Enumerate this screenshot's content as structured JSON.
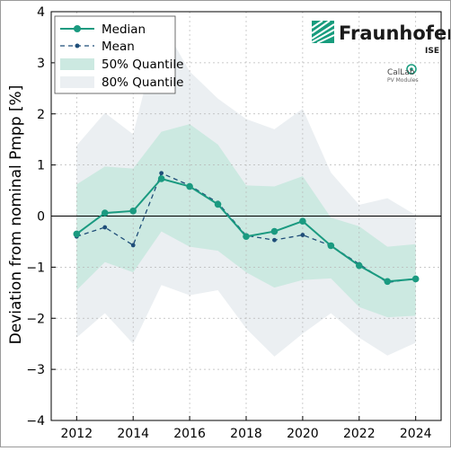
{
  "chart_data": {
    "type": "line",
    "ylabel": "Deviation from nominal Pmpp [%]",
    "xlabel": "",
    "xlim": [
      2011.1,
      2024.9
    ],
    "ylim": [
      -4,
      4
    ],
    "xticks": [
      2012,
      2014,
      2016,
      2018,
      2020,
      2022,
      2024
    ],
    "yticks": [
      -4,
      -3,
      -2,
      -1,
      0,
      1,
      2,
      3,
      4
    ],
    "grid": true,
    "zero_line": true,
    "legend_position": "top-left",
    "series": [
      {
        "name": "Median",
        "style": "solid line with markers",
        "color": "#1a9a80",
        "x": [
          2012,
          2013,
          2014,
          2015,
          2016,
          2017,
          2018,
          2019,
          2020,
          2021,
          2022,
          2023,
          2024
        ],
        "y": [
          -0.35,
          0.06,
          0.1,
          0.73,
          0.58,
          0.23,
          -0.4,
          -0.3,
          -0.1,
          -0.58,
          -0.97,
          -1.28,
          -1.23
        ]
      },
      {
        "name": "Mean",
        "style": "dashed line with markers",
        "color": "#1f4e79",
        "x": [
          2012,
          2013,
          2014,
          2015,
          2016,
          2017,
          2018,
          2019,
          2020,
          2021,
          2022,
          2023,
          2024
        ],
        "y": [
          -0.4,
          -0.22,
          -0.57,
          0.84,
          0.6,
          0.26,
          -0.38,
          -0.47,
          -0.37,
          -0.58,
          -0.94,
          -1.3,
          -1.22
        ]
      },
      {
        "name": "50% Quantile",
        "style": "band",
        "color": "#cce9e1",
        "x": [
          2012,
          2013,
          2014,
          2015,
          2016,
          2017,
          2018,
          2019,
          2020,
          2021,
          2022,
          2023,
          2024
        ],
        "upper": [
          0.62,
          0.97,
          0.93,
          1.65,
          1.8,
          1.4,
          0.6,
          0.58,
          0.78,
          -0.03,
          -0.2,
          -0.6,
          -0.55
        ],
        "lower": [
          -1.45,
          -0.9,
          -1.1,
          -0.3,
          -0.6,
          -0.68,
          -1.1,
          -1.4,
          -1.25,
          -1.22,
          -1.78,
          -1.98,
          -1.95
        ]
      },
      {
        "name": "80% Quantile",
        "style": "band",
        "color": "#ebeff2",
        "x": [
          2012,
          2013,
          2014,
          2015,
          2016,
          2017,
          2018,
          2019,
          2020,
          2021,
          2022,
          2023,
          2024
        ],
        "upper": [
          1.38,
          2.02,
          1.6,
          3.8,
          2.83,
          2.3,
          1.9,
          1.7,
          2.1,
          0.85,
          0.22,
          0.35,
          0.02
        ],
        "lower": [
          -2.38,
          -1.9,
          -2.5,
          -1.35,
          -1.55,
          -1.45,
          -2.2,
          -2.75,
          -2.3,
          -1.9,
          -2.38,
          -2.73,
          -2.48
        ]
      }
    ]
  },
  "legend": {
    "median": "Median",
    "mean": "Mean",
    "q50": "50% Quantile",
    "q80": "80% Quantile"
  },
  "logo": {
    "name": "Fraunhofer",
    "sub": "ISE",
    "callab": "CalLab",
    "callab_sub": "PV Modules",
    "color": "#179c7d"
  }
}
